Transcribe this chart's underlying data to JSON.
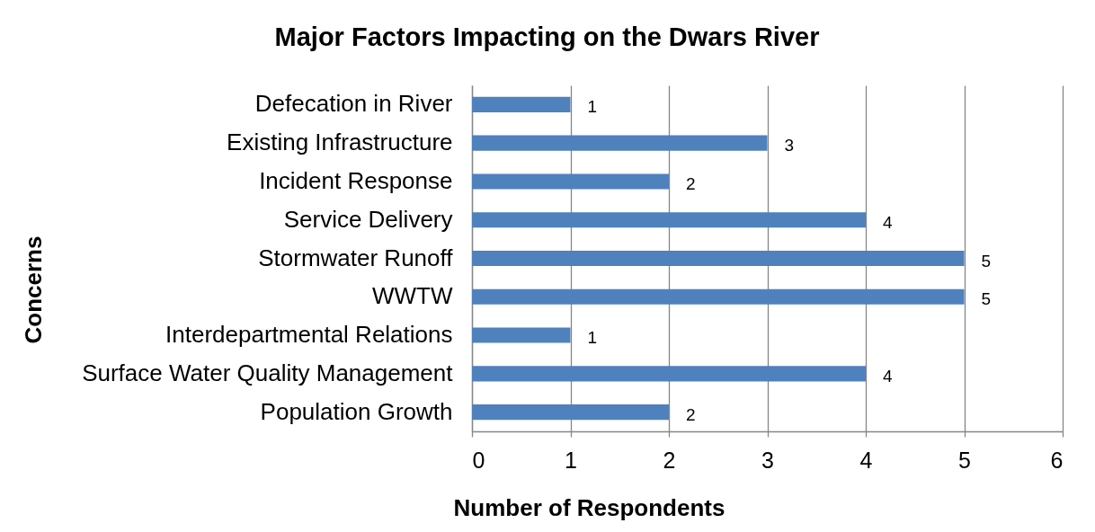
{
  "chart_data": {
    "type": "bar",
    "orientation": "horizontal",
    "title": "Major Factors Impacting on the Dwars River",
    "xlabel": "Number of Respondents",
    "ylabel": "Concerns",
    "categories": [
      "Defecation in River",
      "Existing Infrastructure",
      "Incident Response",
      "Service Delivery",
      "Stormwater Runoff",
      "WWTW",
      "Interdepartmental Relations",
      "Surface Water Quality Management",
      "Population Growth"
    ],
    "values": [
      1,
      3,
      2,
      4,
      5,
      5,
      1,
      4,
      2
    ],
    "color": "#4f81bd",
    "xlim": [
      0,
      6
    ],
    "xticks": [
      0,
      1,
      2,
      3,
      4,
      5,
      6
    ],
    "grid": "x",
    "data_labels": true
  }
}
